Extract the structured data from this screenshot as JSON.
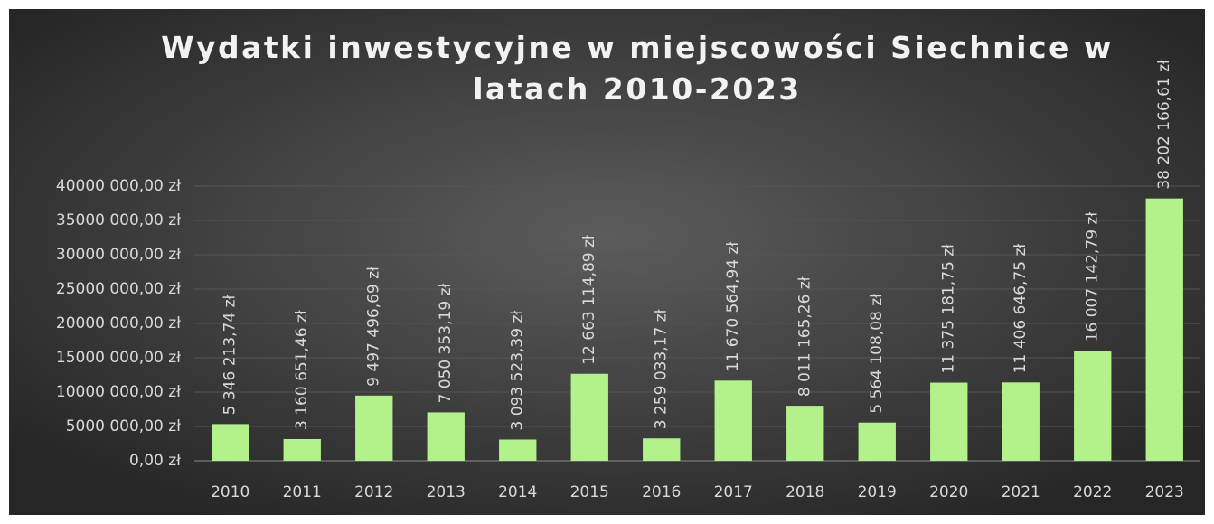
{
  "chart_data": {
    "type": "bar",
    "title": "Wydatki inwestycyjne w miejscowości Siechnice w latach 2010-2023",
    "categories": [
      "2010",
      "2011",
      "2012",
      "2013",
      "2014",
      "2015",
      "2016",
      "2017",
      "2018",
      "2019",
      "2020",
      "2021",
      "2022",
      "2023"
    ],
    "values": [
      5346213.74,
      3160651.46,
      9497496.69,
      7050353.19,
      3093523.39,
      12663114.89,
      3259033.17,
      11670564.94,
      8011165.26,
      5564108.08,
      11375181.75,
      11406646.75,
      16007142.79,
      38202166.61
    ],
    "value_labels": [
      "5 346 213,74 zł",
      "3 160 651,46 zł",
      "9 497 496,69 zł",
      "7 050 353,19 zł",
      "3 093 523,39 zł",
      "12 663 114,89 zł",
      "3 259 033,17 zł",
      "11 670 564,94 zł",
      "8 011 165,26 zł",
      "5 564 108,08 zł",
      "11 375 181,75 zł",
      "11 406 646,75 zł",
      "16 007 142,79 zł",
      "38 202 166,61 zł"
    ],
    "color": "#b3f28a",
    "ylim": [
      0,
      40000000
    ],
    "yticks": [
      {
        "value": 0,
        "label": "0,00 zł"
      },
      {
        "value": 5000000,
        "label": "5000 000,00 zł"
      },
      {
        "value": 10000000,
        "label": "10000 000,00 zł"
      },
      {
        "value": 15000000,
        "label": "15000 000,00 zł"
      },
      {
        "value": 20000000,
        "label": "20000 000,00 zł"
      },
      {
        "value": 25000000,
        "label": "25000 000,00 zł"
      },
      {
        "value": 30000000,
        "label": "30000 000,00 zł"
      },
      {
        "value": 35000000,
        "label": "35000 000,00 zł"
      },
      {
        "value": 40000000,
        "label": "40000 000,00 zł"
      }
    ],
    "grid": true
  }
}
